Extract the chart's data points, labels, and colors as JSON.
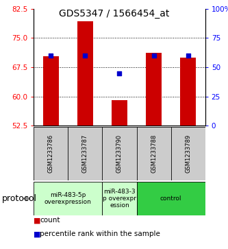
{
  "title": "GDS5347 / 1566454_at",
  "samples": [
    "GSM1233786",
    "GSM1233787",
    "GSM1233790",
    "GSM1233788",
    "GSM1233789"
  ],
  "counts": [
    70.3,
    79.2,
    59.0,
    71.2,
    70.0
  ],
  "percentiles": [
    60.0,
    60.0,
    45.0,
    60.0,
    60.0
  ],
  "ylim_left": [
    52.5,
    82.5
  ],
  "ylim_right": [
    0,
    100
  ],
  "yticks_left": [
    52.5,
    60.0,
    67.5,
    75.0,
    82.5
  ],
  "yticks_right": [
    0,
    25,
    50,
    75,
    100
  ],
  "ytick_labels_right": [
    "0",
    "25",
    "50",
    "75",
    "100%"
  ],
  "bar_color": "#cc0000",
  "dot_color": "#0000cc",
  "bar_bottom": 52.5,
  "grid_dotted_at": [
    60.0,
    67.5,
    75.0
  ],
  "group_labels": [
    "miR-483-5p\noverexpression",
    "miR-483-3\np overexpr\nession",
    "control"
  ],
  "group_sample_ranges": [
    [
      0,
      1
    ],
    [
      2,
      2
    ],
    [
      3,
      4
    ]
  ],
  "group_colors": [
    "#ccffcc",
    "#ccffcc",
    "#33cc44"
  ],
  "protocol_label": "protocol",
  "legend_count_label": "count",
  "legend_percentile_label": "percentile rank within the sample",
  "bg_color": "#ffffff",
  "label_area_bg": "#cccccc",
  "title_fontsize": 10,
  "tick_fontsize": 7.5,
  "sample_fontsize": 6.0,
  "group_fontsize": 6.5,
  "legend_fontsize": 7.5,
  "protocol_fontsize": 9
}
